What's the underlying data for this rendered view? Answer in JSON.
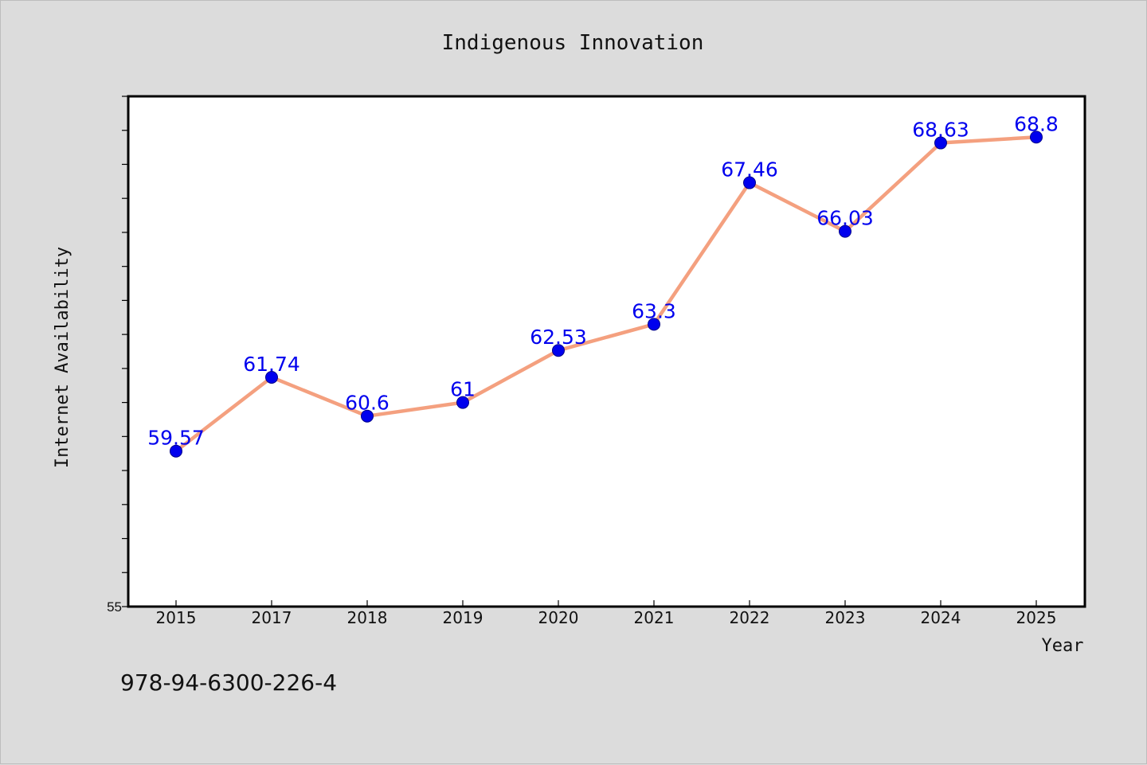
{
  "chart_data": {
    "type": "line",
    "title": "Indigenous Innovation",
    "xlabel": "Year",
    "ylabel": "Internet Availability",
    "categories": [
      "2015",
      "2017",
      "2018",
      "2019",
      "2020",
      "2021",
      "2022",
      "2023",
      "2024",
      "2025"
    ],
    "series": [
      {
        "values": [
          59.57,
          61.74,
          60.6,
          61,
          62.53,
          63.3,
          67.46,
          66.03,
          68.63,
          68.8
        ]
      }
    ],
    "data_labels": [
      "59.57",
      "61.74",
      "60.6",
      "61",
      "62.53",
      "63.3",
      "67.46",
      "66.03",
      "68.63",
      "68.8"
    ],
    "ylim": [
      55,
      70
    ],
    "yticks_labeled": [
      "55"
    ],
    "grid": false,
    "legend": "none",
    "colors": {
      "line": "#f4a07f",
      "marker": "#0000ee",
      "data_label": "#0000ee",
      "background": "#dcdcdc",
      "plot_background": "#ffffff"
    }
  },
  "footer": {
    "isbn": "978-94-6300-226-4"
  }
}
